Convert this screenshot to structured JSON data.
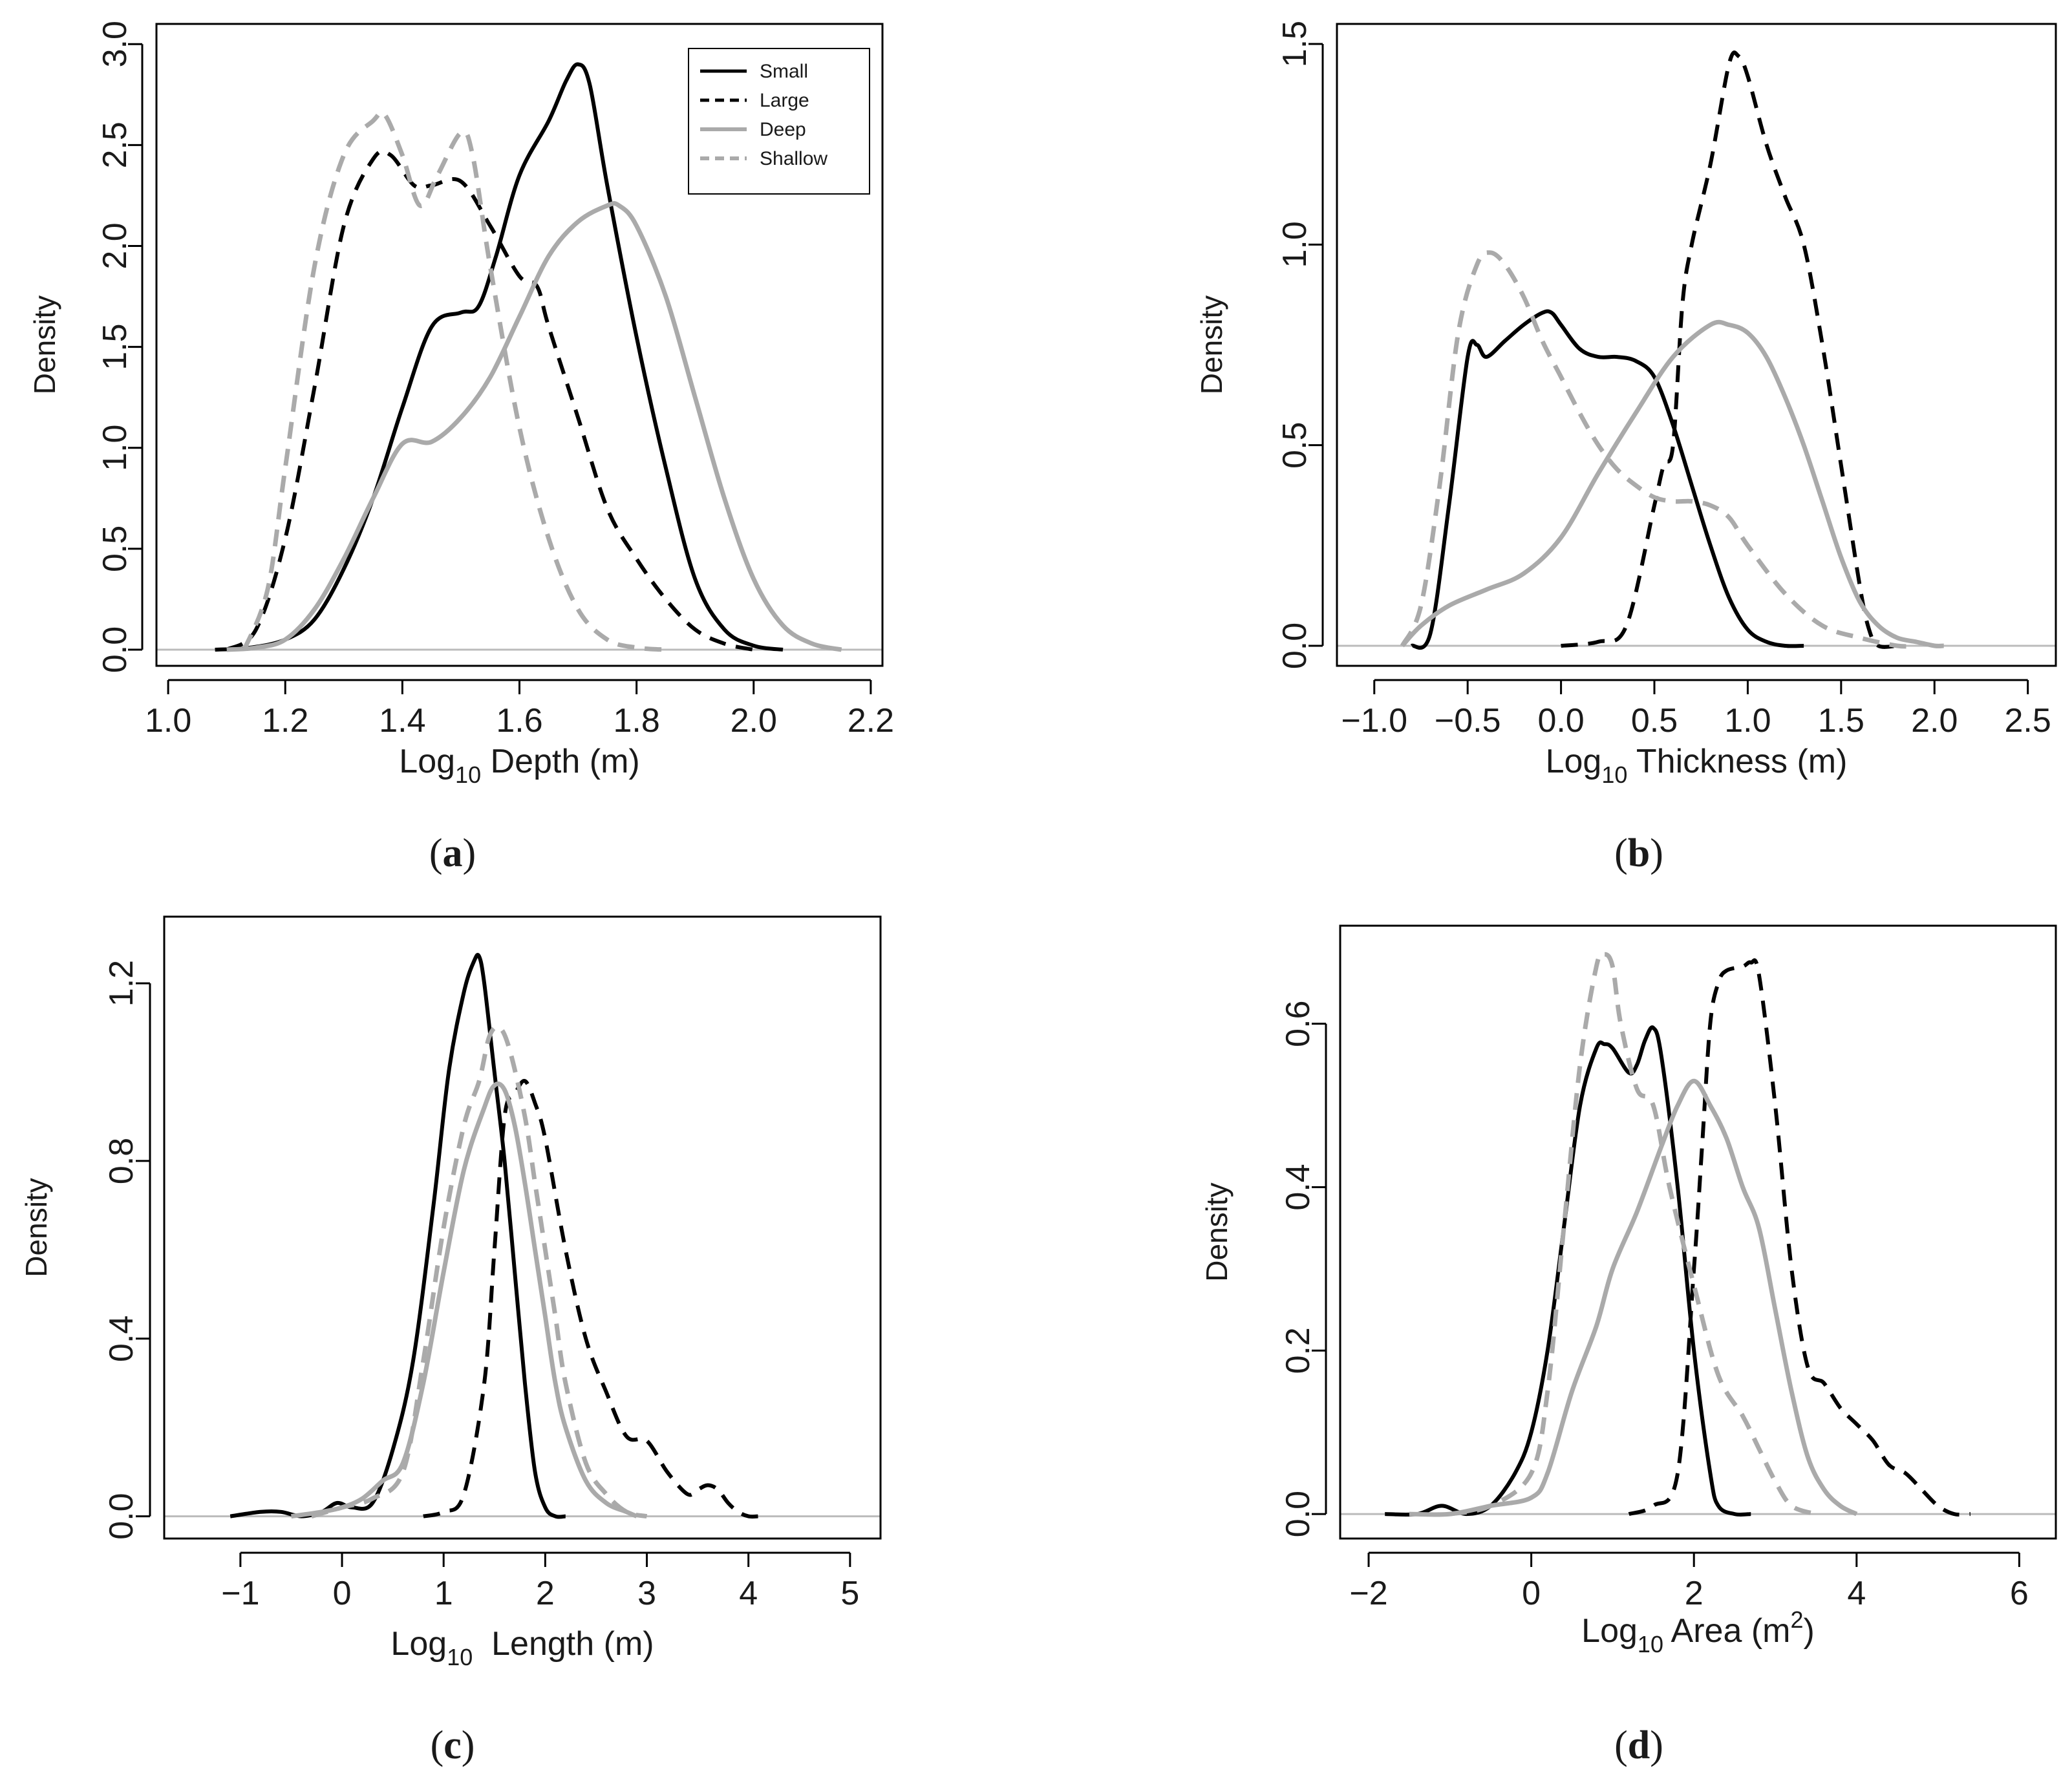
{
  "chart_data": [
    {
      "type": "line",
      "panel_label": "a",
      "xlabel": {
        "prefix": "Log",
        "sub": "10",
        "rest": " Depth (m)"
      },
      "ylabel": "Density",
      "xlim": [
        0.98,
        2.22
      ],
      "ylim": [
        -0.08,
        3.1
      ],
      "xticks": [
        1.0,
        1.2,
        1.4,
        1.6,
        1.8,
        2.0,
        2.2
      ],
      "xtick_labels": [
        "1.0",
        "1.2",
        "1.4",
        "1.6",
        "1.8",
        "2.0",
        "2.2"
      ],
      "yticks": [
        0.0,
        0.5,
        1.0,
        1.5,
        2.0,
        2.5,
        3.0
      ],
      "ytick_labels": [
        "0.0",
        "0.5",
        "1.0",
        "1.5",
        "2.0",
        "2.5",
        "3.0"
      ],
      "legend": {
        "position": "top-right",
        "entries": [
          "Small",
          "Large",
          "Deep",
          "Shallow"
        ]
      },
      "series": [
        {
          "name": "Small",
          "style": "solid",
          "color": "#000000",
          "x": [
            1.08,
            1.14,
            1.2,
            1.25,
            1.3,
            1.35,
            1.4,
            1.45,
            1.5,
            1.53,
            1.56,
            1.6,
            1.65,
            1.68,
            1.7,
            1.72,
            1.75,
            1.8,
            1.85,
            1.9,
            1.95,
            2.0,
            2.05
          ],
          "y": [
            0.0,
            0.01,
            0.05,
            0.15,
            0.4,
            0.75,
            1.2,
            1.6,
            1.67,
            1.7,
            1.95,
            2.35,
            2.62,
            2.82,
            2.9,
            2.8,
            2.3,
            1.55,
            0.9,
            0.35,
            0.1,
            0.02,
            0.0
          ]
        },
        {
          "name": "Large",
          "style": "dashed",
          "color": "#000000",
          "x": [
            1.1,
            1.15,
            1.2,
            1.25,
            1.3,
            1.35,
            1.38,
            1.42,
            1.45,
            1.5,
            1.55,
            1.6,
            1.63,
            1.65,
            1.7,
            1.75,
            1.8,
            1.85,
            1.9,
            1.95,
            2.0
          ],
          "y": [
            0.0,
            0.1,
            0.55,
            1.3,
            2.1,
            2.43,
            2.45,
            2.3,
            2.3,
            2.32,
            2.1,
            1.85,
            1.8,
            1.6,
            1.15,
            0.7,
            0.45,
            0.25,
            0.1,
            0.03,
            0.0
          ]
        },
        {
          "name": "Deep",
          "style": "solid",
          "color": "#aaaaaa",
          "x": [
            1.1,
            1.15,
            1.2,
            1.25,
            1.3,
            1.35,
            1.4,
            1.45,
            1.5,
            1.55,
            1.6,
            1.65,
            1.7,
            1.75,
            1.77,
            1.8,
            1.85,
            1.9,
            1.95,
            2.0,
            2.05,
            2.1,
            2.15
          ],
          "y": [
            0.0,
            0.01,
            0.05,
            0.2,
            0.45,
            0.75,
            1.02,
            1.03,
            1.15,
            1.35,
            1.65,
            1.95,
            2.12,
            2.2,
            2.2,
            2.1,
            1.75,
            1.25,
            0.75,
            0.35,
            0.12,
            0.03,
            0.0
          ]
        },
        {
          "name": "Shallow",
          "style": "dashed",
          "color": "#aaaaaa",
          "x": [
            1.13,
            1.17,
            1.2,
            1.25,
            1.3,
            1.35,
            1.37,
            1.4,
            1.43,
            1.46,
            1.5,
            1.52,
            1.55,
            1.6,
            1.65,
            1.7,
            1.75,
            1.8,
            1.85
          ],
          "y": [
            0.0,
            0.3,
            0.9,
            1.9,
            2.45,
            2.62,
            2.65,
            2.45,
            2.2,
            2.35,
            2.56,
            2.45,
            1.9,
            1.1,
            0.55,
            0.2,
            0.05,
            0.01,
            0.0
          ]
        }
      ]
    },
    {
      "type": "line",
      "panel_label": "b",
      "xlabel": {
        "prefix": "Log",
        "sub": "10",
        "rest": " Thickness (m)"
      },
      "ylabel": "Density",
      "xlim": [
        -1.2,
        2.65
      ],
      "ylim": [
        -0.05,
        1.55
      ],
      "xticks": [
        -1.0,
        -0.5,
        0.0,
        0.5,
        1.0,
        1.5,
        2.0,
        2.5
      ],
      "xtick_labels": [
        "−1.0",
        "−0.5",
        "0.0",
        "0.5",
        "1.0",
        "1.5",
        "2.0",
        "2.5"
      ],
      "yticks": [
        0.0,
        0.5,
        1.0,
        1.5
      ],
      "ytick_labels": [
        "0.0",
        "0.5",
        "1.0",
        "1.5"
      ],
      "series": [
        {
          "name": "Small",
          "style": "solid",
          "color": "#000000",
          "x": [
            -0.8,
            -0.7,
            -0.6,
            -0.5,
            -0.45,
            -0.4,
            -0.3,
            -0.2,
            -0.1,
            -0.05,
            0.0,
            0.1,
            0.2,
            0.3,
            0.4,
            0.5,
            0.6,
            0.7,
            0.8,
            0.9,
            1.0,
            1.1,
            1.2,
            1.3
          ],
          "y": [
            0.0,
            0.03,
            0.35,
            0.72,
            0.75,
            0.72,
            0.76,
            0.8,
            0.83,
            0.83,
            0.8,
            0.74,
            0.72,
            0.72,
            0.71,
            0.67,
            0.55,
            0.4,
            0.25,
            0.12,
            0.04,
            0.01,
            0.0,
            0.0
          ]
        },
        {
          "name": "Large",
          "style": "dashed",
          "color": "#000000",
          "x": [
            0.0,
            0.2,
            0.35,
            0.5,
            0.55,
            0.6,
            0.65,
            0.7,
            0.8,
            0.9,
            0.95,
            1.0,
            1.1,
            1.2,
            1.3,
            1.4,
            1.5,
            1.6,
            1.65,
            1.7,
            1.8
          ],
          "y": [
            0.0,
            0.01,
            0.05,
            0.35,
            0.45,
            0.5,
            0.85,
            1.0,
            1.2,
            1.45,
            1.47,
            1.42,
            1.25,
            1.12,
            1.0,
            0.75,
            0.45,
            0.15,
            0.04,
            0.0,
            0.0
          ]
        },
        {
          "name": "Deep",
          "style": "solid",
          "color": "#aaaaaa",
          "x": [
            -0.85,
            -0.75,
            -0.6,
            -0.4,
            -0.2,
            0.0,
            0.2,
            0.4,
            0.6,
            0.8,
            0.9,
            1.0,
            1.1,
            1.2,
            1.3,
            1.4,
            1.5,
            1.6,
            1.7,
            1.8,
            1.9,
            2.0,
            2.05
          ],
          "y": [
            0.0,
            0.05,
            0.1,
            0.14,
            0.18,
            0.27,
            0.43,
            0.58,
            0.72,
            0.8,
            0.8,
            0.78,
            0.72,
            0.62,
            0.5,
            0.36,
            0.22,
            0.11,
            0.05,
            0.02,
            0.01,
            0.0,
            0.0
          ]
        },
        {
          "name": "Shallow",
          "style": "dashed",
          "color": "#aaaaaa",
          "x": [
            -0.85,
            -0.75,
            -0.65,
            -0.55,
            -0.45,
            -0.38,
            -0.3,
            -0.2,
            -0.1,
            0.0,
            0.1,
            0.2,
            0.3,
            0.4,
            0.5,
            0.6,
            0.7,
            0.8,
            0.9,
            1.0,
            1.2,
            1.4,
            1.6,
            1.8,
            1.9
          ],
          "y": [
            0.0,
            0.1,
            0.4,
            0.78,
            0.95,
            0.98,
            0.95,
            0.87,
            0.76,
            0.67,
            0.58,
            0.5,
            0.44,
            0.4,
            0.37,
            0.36,
            0.36,
            0.35,
            0.32,
            0.25,
            0.13,
            0.05,
            0.02,
            0.0,
            0.0
          ]
        }
      ]
    },
    {
      "type": "line",
      "panel_label": "c",
      "xlabel": {
        "prefix": "Log",
        "sub": "10",
        "rest": "  Length (m)"
      },
      "ylabel": "Density",
      "xlim": [
        -1.75,
        5.3
      ],
      "ylim": [
        -0.05,
        1.35
      ],
      "xticks": [
        -1,
        0,
        1,
        2,
        3,
        4,
        5
      ],
      "xtick_labels": [
        "−1",
        "0",
        "1",
        "2",
        "3",
        "4",
        "5"
      ],
      "yticks": [
        0.0,
        0.4,
        0.8,
        1.2
      ],
      "ytick_labels": [
        "0.0",
        "0.4",
        "0.8",
        "1.2"
      ],
      "series": [
        {
          "name": "Small",
          "style": "solid",
          "color": "#000000",
          "x": [
            -1.1,
            -0.8,
            -0.6,
            -0.4,
            -0.2,
            -0.05,
            0.1,
            0.3,
            0.5,
            0.7,
            0.9,
            1.05,
            1.2,
            1.3,
            1.35,
            1.4,
            1.5,
            1.6,
            1.7,
            1.8,
            1.9,
            2.0,
            2.1,
            2.2
          ],
          "y": [
            0.0,
            0.01,
            0.01,
            0.0,
            0.01,
            0.03,
            0.02,
            0.03,
            0.15,
            0.35,
            0.7,
            1.0,
            1.18,
            1.25,
            1.26,
            1.2,
            1.0,
            0.8,
            0.55,
            0.3,
            0.1,
            0.02,
            0.0,
            0.0
          ]
        },
        {
          "name": "Large",
          "style": "dashed",
          "color": "#000000",
          "x": [
            0.8,
            1.0,
            1.2,
            1.4,
            1.5,
            1.6,
            1.7,
            1.8,
            1.9,
            2.0,
            2.2,
            2.4,
            2.6,
            2.8,
            3.0,
            3.2,
            3.4,
            3.5,
            3.6,
            3.7,
            3.8,
            3.9,
            4.0,
            4.1
          ],
          "y": [
            0.0,
            0.01,
            0.05,
            0.3,
            0.6,
            0.9,
            0.95,
            0.98,
            0.93,
            0.85,
            0.6,
            0.4,
            0.28,
            0.18,
            0.17,
            0.1,
            0.05,
            0.06,
            0.07,
            0.06,
            0.03,
            0.01,
            0.0,
            0.0
          ]
        },
        {
          "name": "Deep",
          "style": "solid",
          "color": "#aaaaaa",
          "x": [
            -0.5,
            -0.2,
            0.0,
            0.2,
            0.4,
            0.6,
            0.8,
            1.0,
            1.2,
            1.4,
            1.5,
            1.6,
            1.7,
            1.8,
            1.9,
            2.0,
            2.1,
            2.2,
            2.4,
            2.6,
            2.8,
            2.9
          ],
          "y": [
            0.0,
            0.01,
            0.02,
            0.04,
            0.08,
            0.12,
            0.3,
            0.55,
            0.78,
            0.92,
            0.97,
            0.96,
            0.88,
            0.75,
            0.6,
            0.45,
            0.3,
            0.2,
            0.08,
            0.03,
            0.01,
            0.0
          ]
        },
        {
          "name": "Shallow",
          "style": "dashed",
          "color": "#aaaaaa",
          "x": [
            -0.3,
            0.0,
            0.3,
            0.6,
            0.8,
            1.0,
            1.2,
            1.35,
            1.45,
            1.55,
            1.65,
            1.8,
            1.9,
            2.0,
            2.1,
            2.2,
            2.4,
            2.6,
            2.8,
            3.0
          ],
          "y": [
            0.0,
            0.02,
            0.04,
            0.1,
            0.35,
            0.65,
            0.88,
            0.98,
            1.08,
            1.1,
            1.05,
            0.9,
            0.75,
            0.6,
            0.45,
            0.3,
            0.12,
            0.05,
            0.01,
            0.0
          ]
        }
      ]
    },
    {
      "type": "line",
      "panel_label": "d",
      "xlabel": {
        "prefix": "Log",
        "sub": "10",
        "rest": " Area (m",
        "sup": "2",
        "end": ")"
      },
      "ylabel": "Density",
      "xlim": [
        -2.35,
        6.45
      ],
      "ylim": [
        -0.03,
        0.72
      ],
      "xticks": [
        -2,
        0,
        2,
        4,
        6
      ],
      "xtick_labels": [
        "−2",
        "0",
        "2",
        "4",
        "6"
      ],
      "yticks": [
        0.0,
        0.2,
        0.4,
        0.6
      ],
      "ytick_labels": [
        "0.0",
        "0.2",
        "0.4",
        "0.6"
      ],
      "series": [
        {
          "name": "Small",
          "style": "solid",
          "color": "#000000",
          "x": [
            -1.8,
            -1.4,
            -1.1,
            -0.8,
            -0.5,
            -0.2,
            0.0,
            0.2,
            0.4,
            0.6,
            0.8,
            0.9,
            1.0,
            1.2,
            1.3,
            1.4,
            1.5,
            1.6,
            1.8,
            2.0,
            2.2,
            2.3,
            2.5,
            2.7
          ],
          "y": [
            0.0,
            0.0,
            0.01,
            0.0,
            0.01,
            0.05,
            0.1,
            0.2,
            0.35,
            0.5,
            0.57,
            0.575,
            0.57,
            0.54,
            0.55,
            0.58,
            0.595,
            0.56,
            0.4,
            0.2,
            0.05,
            0.01,
            0.0,
            0.0
          ]
        },
        {
          "name": "Large",
          "style": "dashed",
          "color": "#000000",
          "x": [
            1.2,
            1.5,
            1.8,
            2.0,
            2.1,
            2.2,
            2.3,
            2.4,
            2.6,
            2.7,
            2.8,
            3.0,
            3.2,
            3.4,
            3.6,
            3.8,
            4.0,
            4.2,
            4.4,
            4.6,
            4.8,
            5.0,
            5.2,
            5.4
          ],
          "y": [
            0.0,
            0.01,
            0.05,
            0.3,
            0.45,
            0.6,
            0.65,
            0.665,
            0.67,
            0.675,
            0.66,
            0.5,
            0.3,
            0.18,
            0.16,
            0.13,
            0.11,
            0.09,
            0.06,
            0.05,
            0.03,
            0.01,
            0.0,
            0.0
          ]
        },
        {
          "name": "Deep",
          "style": "solid",
          "color": "#aaaaaa",
          "x": [
            -1.5,
            -1.0,
            -0.5,
            0.0,
            0.2,
            0.5,
            0.8,
            1.0,
            1.3,
            1.6,
            1.8,
            2.0,
            2.2,
            2.4,
            2.6,
            2.8,
            3.0,
            3.2,
            3.4,
            3.6,
            3.8,
            4.0
          ],
          "y": [
            0.0,
            0.0,
            0.01,
            0.02,
            0.05,
            0.15,
            0.23,
            0.3,
            0.37,
            0.45,
            0.5,
            0.53,
            0.5,
            0.46,
            0.4,
            0.35,
            0.25,
            0.15,
            0.07,
            0.03,
            0.01,
            0.0
          ]
        },
        {
          "name": "Shallow",
          "style": "dashed",
          "color": "#aaaaaa",
          "x": [
            -1.0,
            -0.5,
            0.0,
            0.2,
            0.4,
            0.6,
            0.8,
            0.9,
            1.0,
            1.1,
            1.3,
            1.5,
            1.7,
            2.0,
            2.3,
            2.6,
            2.8,
            3.0,
            3.2,
            3.5
          ],
          "y": [
            0.0,
            0.01,
            0.05,
            0.15,
            0.35,
            0.55,
            0.67,
            0.685,
            0.67,
            0.6,
            0.52,
            0.5,
            0.4,
            0.28,
            0.17,
            0.12,
            0.08,
            0.04,
            0.01,
            0.0
          ]
        }
      ]
    }
  ]
}
